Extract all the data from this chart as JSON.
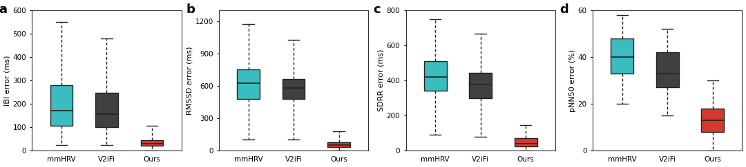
{
  "panels": [
    {
      "label": "a",
      "ylabel": "IBI error (ms)",
      "ylim": [
        0,
        600
      ],
      "yticks": [
        0,
        100,
        200,
        300,
        400,
        500,
        600
      ],
      "boxes": [
        {
          "color": "#3bbcbe",
          "whislo": 25,
          "q1": 105,
          "med": 170,
          "q3": 280,
          "whishi": 550
        },
        {
          "color": "#404040",
          "whislo": 25,
          "q1": 100,
          "med": 155,
          "q3": 248,
          "whishi": 480
        },
        {
          "color": "#d63a2f",
          "whislo": 0,
          "q1": 20,
          "med": 30,
          "q3": 45,
          "whishi": 105
        }
      ]
    },
    {
      "label": "b",
      "ylabel": "RMSSD error (ms)",
      "ylim": [
        0,
        1300
      ],
      "yticks": [
        0,
        300,
        600,
        900,
        1200
      ],
      "boxes": [
        {
          "color": "#3bbcbe",
          "whislo": 100,
          "q1": 480,
          "med": 625,
          "q3": 750,
          "whishi": 1175
        },
        {
          "color": "#404040",
          "whislo": 100,
          "q1": 480,
          "med": 580,
          "q3": 665,
          "whishi": 1025
        },
        {
          "color": "#d63a2f",
          "whislo": 0,
          "q1": 30,
          "med": 50,
          "q3": 75,
          "whishi": 180
        }
      ]
    },
    {
      "label": "c",
      "ylabel": "SDRR error (ms)",
      "ylim": [
        0,
        800
      ],
      "yticks": [
        0,
        200,
        400,
        600,
        800
      ],
      "boxes": [
        {
          "color": "#3bbcbe",
          "whislo": 90,
          "q1": 340,
          "med": 420,
          "q3": 510,
          "whishi": 750
        },
        {
          "color": "#404040",
          "whislo": 80,
          "q1": 300,
          "med": 375,
          "q3": 445,
          "whishi": 665
        },
        {
          "color": "#d63a2f",
          "whislo": 0,
          "q1": 25,
          "med": 40,
          "q3": 70,
          "whishi": 145
        }
      ]
    },
    {
      "label": "d",
      "ylabel": "pNN50 error (%)",
      "ylim": [
        0,
        60
      ],
      "yticks": [
        0,
        20,
        40,
        60
      ],
      "boxes": [
        {
          "color": "#3bbcbe",
          "whislo": 20,
          "q1": 33,
          "med": 40,
          "q3": 48,
          "whishi": 58
        },
        {
          "color": "#404040",
          "whislo": 15,
          "q1": 27,
          "med": 33,
          "q3": 42,
          "whishi": 52
        },
        {
          "color": "#d63a2f",
          "whislo": 0,
          "q1": 8,
          "med": 13,
          "q3": 18,
          "whishi": 30
        }
      ]
    }
  ],
  "xticklabels": [
    "mmHRV",
    "V2iFi",
    "Ours"
  ],
  "box_width": 0.5,
  "linewidth": 1.0,
  "median_linewidth": 1.2,
  "background_color": "#ffffff",
  "tick_fontsize": 7.5,
  "ylabel_fontsize": 8,
  "panel_label_fontsize": 13
}
